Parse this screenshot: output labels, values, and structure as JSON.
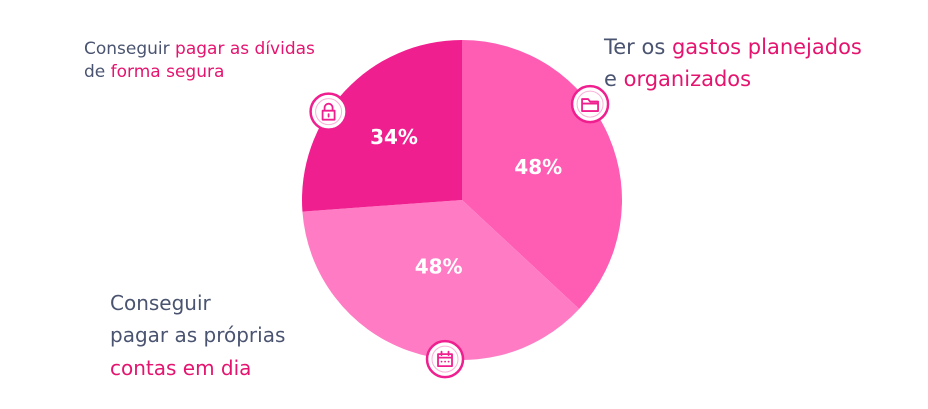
{
  "chart_data": {
    "type": "pie",
    "slices": [
      {
        "label": "Ter os gastos planejados e organizados",
        "value": 48,
        "value_label": "48%",
        "color": "#ff5cb3",
        "icon": "folder-icon"
      },
      {
        "label": "Conseguir pagar as próprias contas em dia",
        "value": 48,
        "value_label": "48%",
        "color": "#ff7bc4",
        "icon": "calendar-icon"
      },
      {
        "label": "Conseguir pagar as dívidas de forma segura",
        "value": 34,
        "value_label": "34%",
        "color": "#f01f8f",
        "icon": "lock-icon"
      }
    ]
  },
  "labels": {
    "top_left": {
      "line1_plain": "Conseguir ",
      "line1_hl": "pagar as dívidas",
      "line2_plain": "de ",
      "line2_hl": "forma segura"
    },
    "top_right": {
      "line1_plain": "Ter os ",
      "line1_hl": "gastos planejados",
      "line2_plain": "e ",
      "line2_hl": "organizados"
    },
    "bottom_left": {
      "line1": "Conseguir",
      "line2": "pagar as próprias",
      "line3_hl": "contas em dia"
    }
  },
  "colors": {
    "text": "#4a5470",
    "highlight": "#e4146f",
    "icon_stroke": "#f01f8f"
  }
}
